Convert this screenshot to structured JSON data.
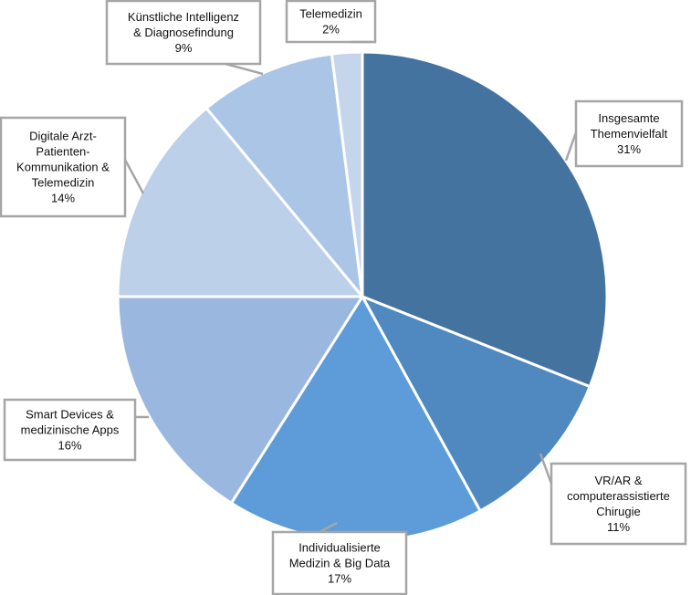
{
  "chart_data": {
    "type": "pie",
    "title": "",
    "slices": [
      {
        "label": [
          "Insgesamte",
          "Themenvielfalt"
        ],
        "value": 31,
        "display": "31%",
        "color": "#44739f"
      },
      {
        "label": [
          "VR/AR &",
          "computerassistierte",
          "Chirugie"
        ],
        "value": 11,
        "display": "11%",
        "color": "#5088c0"
      },
      {
        "label": [
          "Individualisierte",
          "Medizin & Big Data"
        ],
        "value": 17,
        "display": "17%",
        "color": "#5d9cd9"
      },
      {
        "label": [
          "Smart Devices &",
          "medizinische Apps"
        ],
        "value": 16,
        "display": "16%",
        "color": "#9ab8df"
      },
      {
        "label": [
          "Digitale Arzt-",
          "Patienten-",
          "Kommunikation &",
          "Telemedizin"
        ],
        "value": 14,
        "display": "14%",
        "color": "#bcd0ea"
      },
      {
        "label": [
          "Künstliche Intelligenz",
          "& Diagnosefindung"
        ],
        "value": 9,
        "display": "9%",
        "color": "#abc5e6"
      },
      {
        "label": [
          "Telemedizin"
        ],
        "value": 2,
        "display": "2%",
        "color": "#c4d5ec"
      }
    ],
    "legend": "none"
  }
}
